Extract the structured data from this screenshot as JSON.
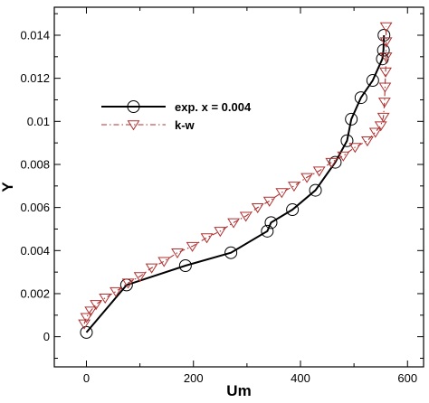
{
  "chart_data": {
    "type": "line",
    "title": "",
    "xlabel": "Um",
    "ylabel": "Y",
    "xlim": [
      -60,
      630
    ],
    "ylim": [
      -0.0014,
      0.0153
    ],
    "x_ticks": [
      0,
      200,
      400,
      600
    ],
    "y_ticks": [
      0,
      0.002,
      0.004,
      0.006,
      0.008,
      0.01,
      0.012,
      0.014
    ],
    "x_tick_labels": [
      "0",
      "200",
      "400",
      "600"
    ],
    "y_tick_labels": [
      "0",
      "0.002",
      "0.004",
      "0.006",
      "0.008",
      "0.01",
      "0.012",
      "0.014"
    ],
    "grid": false,
    "legend_position": "upper-left",
    "series": [
      {
        "name": "exp. x = 0.004",
        "marker": "circle",
        "line_style": "solid",
        "color": "#000000",
        "x": [
          0,
          75,
          185,
          270,
          338,
          345,
          385,
          428,
          465,
          487,
          495,
          513,
          535,
          553,
          555,
          556
        ],
        "y": [
          0.0002,
          0.0024,
          0.0033,
          0.0039,
          0.0049,
          0.0053,
          0.0059,
          0.0068,
          0.0081,
          0.0091,
          0.0101,
          0.0111,
          0.0119,
          0.0129,
          0.0133,
          0.014
        ]
      },
      {
        "name": "k-w",
        "marker": "triangle-down",
        "line_style": "dash-dot",
        "color": "#b03030",
        "x": [
          -4,
          0,
          8,
          18,
          35,
          55,
          78,
          100,
          122,
          145,
          170,
          198,
          225,
          250,
          275,
          298,
          320,
          342,
          365,
          388,
          412,
          435,
          458,
          480,
          502,
          525,
          540,
          550,
          555,
          557,
          558,
          559,
          560,
          560,
          560
        ],
        "y": [
          0.0006,
          0.0009,
          0.0012,
          0.0015,
          0.0018,
          0.0021,
          0.0025,
          0.0028,
          0.0032,
          0.0035,
          0.0039,
          0.0042,
          0.0046,
          0.0049,
          0.0053,
          0.0056,
          0.006,
          0.0063,
          0.0067,
          0.007,
          0.0074,
          0.0077,
          0.0081,
          0.0084,
          0.0088,
          0.0091,
          0.0095,
          0.0098,
          0.0102,
          0.0109,
          0.0116,
          0.0123,
          0.013,
          0.0137,
          0.0144
        ]
      }
    ]
  }
}
